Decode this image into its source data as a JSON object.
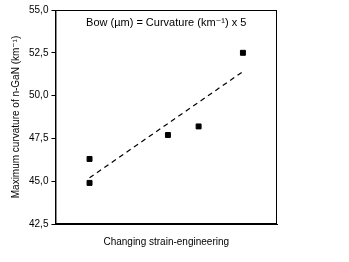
{
  "chart_data": {
    "type": "scatter",
    "x_label": "Changing strain-engineering",
    "y_label": "Maximum curvature of n-GaN (km⁻¹)",
    "annotations": [
      {
        "text": "Bow (µm) = Curvature (km⁻¹) x 5"
      }
    ],
    "series": [
      {
        "type": "scatter",
        "marker": "square",
        "color": "#000000",
        "x": [
          1,
          1,
          3.3,
          4.2,
          5.5
        ],
        "values": [
          46.3,
          44.9,
          47.7,
          48.2,
          52.5
        ]
      },
      {
        "type": "line",
        "line_style": "dashed",
        "color": "#000000",
        "x": [
          1,
          5.5
        ],
        "values": [
          45.2,
          51.4
        ]
      }
    ],
    "xlim": [
      0,
      6.5
    ],
    "ylim": [
      42.5,
      55
    ],
    "yticks": [
      {
        "value": 42.5,
        "label": "42,5"
      },
      {
        "value": 45,
        "label": "45,0"
      },
      {
        "value": 47.5,
        "label": "47,5"
      },
      {
        "value": 50,
        "label": "50,0"
      },
      {
        "value": 52.5,
        "label": "52,5"
      },
      {
        "value": 55,
        "label": "55,0"
      }
    ],
    "grid": false,
    "tick_labels": "y"
  }
}
